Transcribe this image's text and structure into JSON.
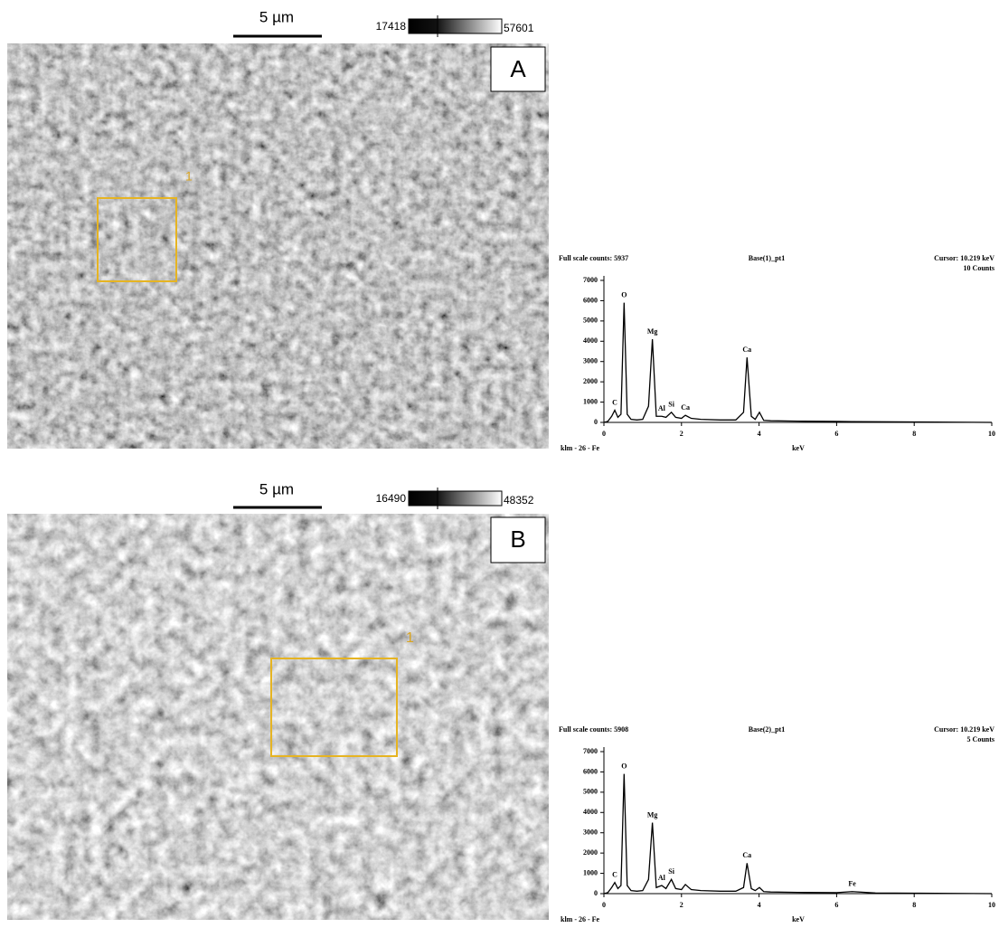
{
  "panels": [
    {
      "label": "A",
      "scale_bar": "5 µm",
      "colorbar_min": "17418",
      "colorbar_max": "57601",
      "roi_label": "1"
    },
    {
      "label": "B",
      "scale_bar": "5 µm",
      "colorbar_min": "16490",
      "colorbar_max": "48352",
      "roi_label": "1"
    }
  ],
  "chart_data": [
    {
      "type": "line",
      "header_left": "Full scale counts: 5937",
      "header_center": "Base(1)_pt1",
      "header_right": "Cursor:  10.219 keV",
      "header_right2": "10 Counts",
      "footer_left": "klm - 26 - Fe",
      "xlabel": "keV",
      "color": "#000000",
      "x": [
        0,
        0.1,
        0.2,
        0.28,
        0.36,
        0.44,
        0.52,
        0.6,
        0.7,
        0.85,
        1.0,
        1.15,
        1.25,
        1.35,
        1.49,
        1.6,
        1.74,
        1.85,
        2.0,
        2.1,
        2.25,
        2.5,
        3.0,
        3.4,
        3.6,
        3.69,
        3.8,
        3.9,
        4.01,
        4.12,
        4.3,
        5,
        6,
        6.4,
        7,
        8,
        9,
        10
      ],
      "values": [
        0,
        50,
        300,
        600,
        250,
        400,
        5900,
        400,
        150,
        120,
        150,
        800,
        4100,
        300,
        300,
        250,
        500,
        250,
        200,
        350,
        200,
        150,
        120,
        120,
        500,
        3200,
        300,
        150,
        500,
        100,
        80,
        60,
        50,
        40,
        30,
        20,
        10,
        0
      ],
      "peak_labels": [
        {
          "text": "C",
          "x": 0.28
        },
        {
          "text": "O",
          "x": 0.52
        },
        {
          "text": "Mg",
          "x": 1.25
        },
        {
          "text": "Al",
          "x": 1.49
        },
        {
          "text": "Si",
          "x": 1.74
        },
        {
          "text": "Ca",
          "x": 2.1
        },
        {
          "text": "Ca",
          "x": 3.69
        }
      ],
      "xlim": [
        0,
        10
      ],
      "xticks": [
        0,
        2,
        4,
        6,
        8,
        10
      ],
      "ylim": [
        0,
        7000
      ],
      "yticks": [
        0,
        1000,
        2000,
        3000,
        4000,
        5000,
        6000,
        7000
      ]
    },
    {
      "type": "line",
      "header_left": "Full scale counts: 5908",
      "header_center": "Base(2)_pt1",
      "header_right": "Cursor:  10.219 keV",
      "header_right2": "5 Counts",
      "footer_left": "klm - 26 - Fe",
      "xlabel": "keV",
      "color": "#000000",
      "x": [
        0,
        0.1,
        0.2,
        0.28,
        0.36,
        0.44,
        0.52,
        0.6,
        0.7,
        0.85,
        1.0,
        1.15,
        1.25,
        1.35,
        1.49,
        1.6,
        1.74,
        1.85,
        2.0,
        2.1,
        2.25,
        2.5,
        3.0,
        3.4,
        3.6,
        3.69,
        3.8,
        3.9,
        4.01,
        4.12,
        4.3,
        5,
        6,
        6.4,
        7,
        8,
        9,
        10
      ],
      "values": [
        0,
        50,
        300,
        550,
        250,
        400,
        5900,
        400,
        150,
        120,
        150,
        700,
        3500,
        300,
        400,
        250,
        700,
        250,
        200,
        450,
        200,
        150,
        120,
        120,
        300,
        1500,
        250,
        150,
        300,
        100,
        80,
        60,
        50,
        100,
        30,
        20,
        10,
        0
      ],
      "peak_labels": [
        {
          "text": "C",
          "x": 0.28
        },
        {
          "text": "O",
          "x": 0.52
        },
        {
          "text": "Mg",
          "x": 1.25
        },
        {
          "text": "Al",
          "x": 1.49
        },
        {
          "text": "Si",
          "x": 1.74
        },
        {
          "text": "Ca",
          "x": 3.69
        },
        {
          "text": "Fe",
          "x": 6.4
        }
      ],
      "xlim": [
        0,
        10
      ],
      "xticks": [
        0,
        2,
        4,
        6,
        8,
        10
      ],
      "ylim": [
        0,
        7000
      ],
      "yticks": [
        0,
        1000,
        2000,
        3000,
        4000,
        5000,
        6000,
        7000
      ]
    }
  ]
}
